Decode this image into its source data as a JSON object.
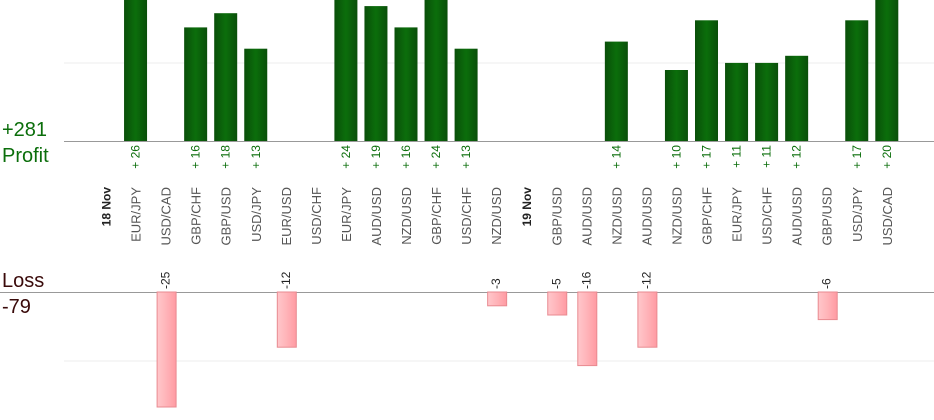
{
  "summary": {
    "profit_total": "+281",
    "profit_label": "Profit",
    "loss_label": "Loss",
    "loss_total": "-79"
  },
  "colors": {
    "profit_bar": "#0b6e0b",
    "profit_label": "#0b6e0b",
    "loss_bar": "#ffb3b8",
    "loss_bar_border": "#e88a90",
    "loss_label": "#3a0a0a",
    "category_label": "#555555",
    "date_label": "#222222",
    "gridline": "#eeeeee",
    "baseline": "#999999"
  },
  "chart_data": {
    "type": "bar",
    "title": "",
    "xlabel": "",
    "ylabel": "",
    "legend": "none",
    "grid": true,
    "ylim_profit": [
      0,
      26
    ],
    "ylim_loss": [
      -25,
      0
    ],
    "categories": [
      {
        "label": "18 Nov",
        "is_date": true,
        "profit": null,
        "loss": null
      },
      {
        "label": "EUR/JPY",
        "profit": 26,
        "loss": null
      },
      {
        "label": "USD/CAD",
        "profit": null,
        "loss": -25
      },
      {
        "label": "GBP/CHF",
        "profit": 16,
        "loss": null
      },
      {
        "label": "GBP/USD",
        "profit": 18,
        "loss": null
      },
      {
        "label": "USD/JPY",
        "profit": 13,
        "loss": null
      },
      {
        "label": "EUR/USD",
        "profit": null,
        "loss": -12
      },
      {
        "label": "USD/CHF",
        "profit": null,
        "loss": null
      },
      {
        "label": "EUR/JPY",
        "profit": 24,
        "loss": null
      },
      {
        "label": "AUD/USD",
        "profit": 19,
        "loss": null
      },
      {
        "label": "NZD/USD",
        "profit": 16,
        "loss": null
      },
      {
        "label": "GBP/CHF",
        "profit": 24,
        "loss": null
      },
      {
        "label": "USD/CHF",
        "profit": 13,
        "loss": null
      },
      {
        "label": "NZD/USD",
        "profit": null,
        "loss": -3
      },
      {
        "label": "19 Nov",
        "is_date": true,
        "profit": null,
        "loss": null
      },
      {
        "label": "GBP/USD",
        "profit": null,
        "loss": -5
      },
      {
        "label": "AUD/USD",
        "profit": null,
        "loss": -16
      },
      {
        "label": "NZD/USD",
        "profit": 14,
        "loss": null
      },
      {
        "label": "AUD/USD",
        "profit": null,
        "loss": -12
      },
      {
        "label": "NZD/USD",
        "profit": 10,
        "loss": null
      },
      {
        "label": "GBP/CHF",
        "profit": 17,
        "loss": null
      },
      {
        "label": "EUR/JPY",
        "profit": 11,
        "loss": null
      },
      {
        "label": "USD/CHF",
        "profit": 11,
        "loss": null
      },
      {
        "label": "AUD/USD",
        "profit": 12,
        "loss": null
      },
      {
        "label": "GBP/USD",
        "profit": null,
        "loss": -6
      },
      {
        "label": "USD/JPY",
        "profit": 17,
        "loss": null
      },
      {
        "label": "USD/CAD",
        "profit": 20,
        "loss": null
      }
    ]
  }
}
